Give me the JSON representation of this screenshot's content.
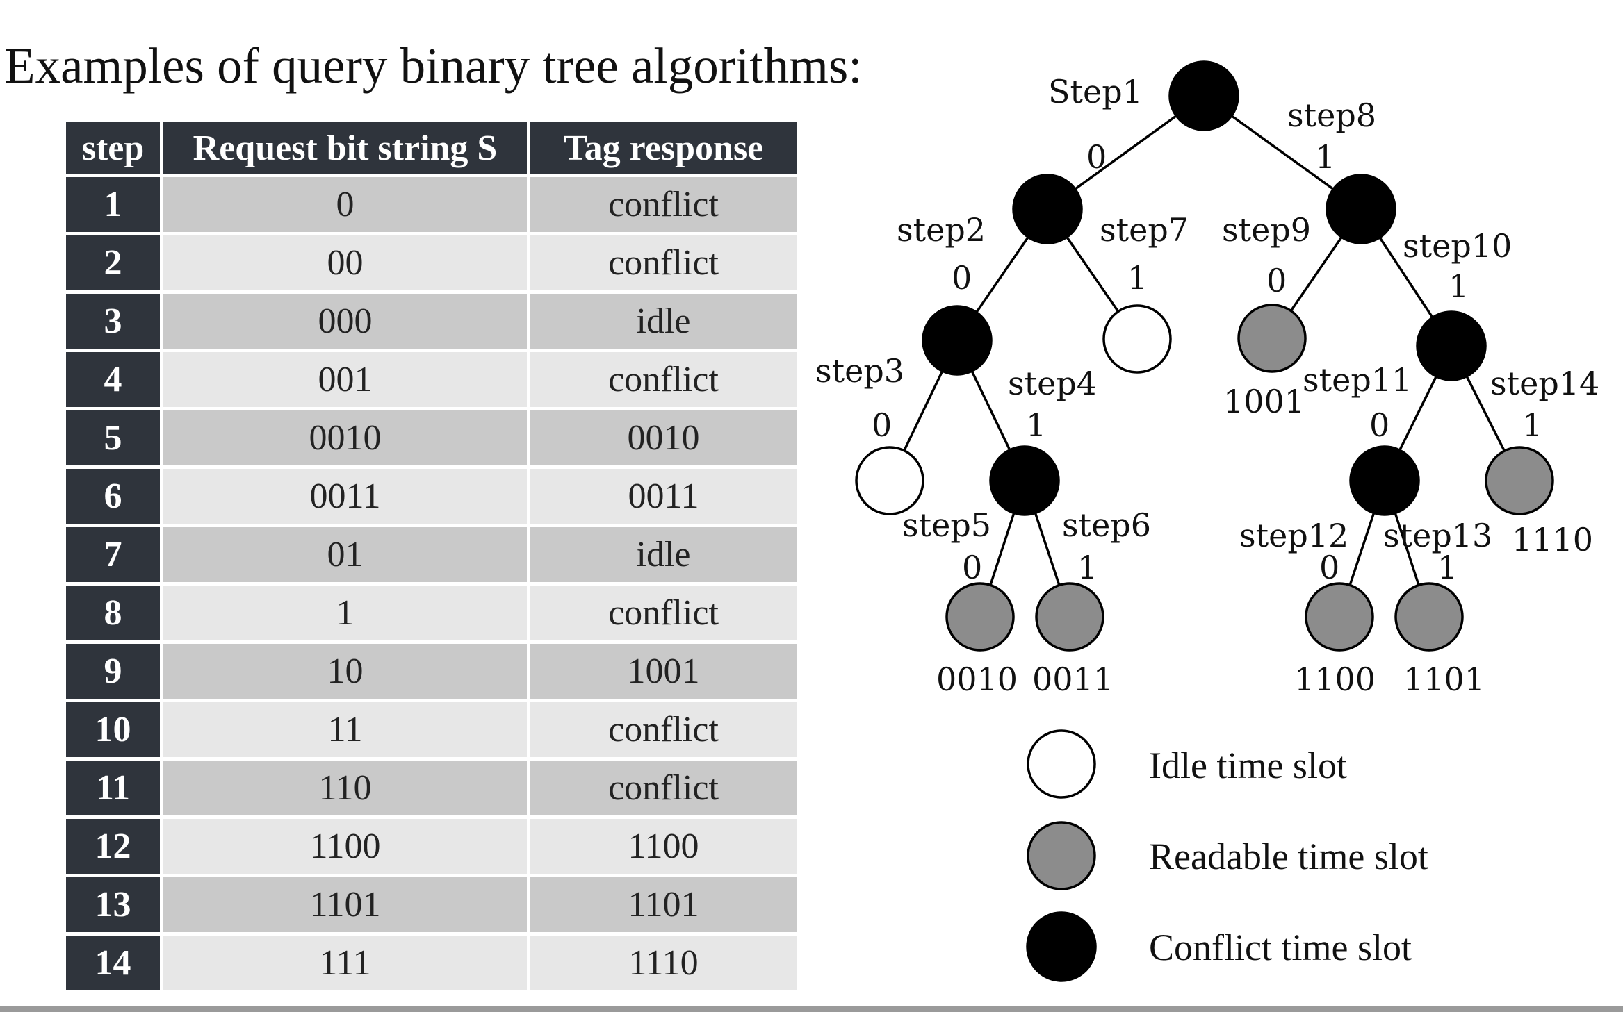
{
  "title": "Examples of query binary tree algorithms:",
  "table": {
    "headers": [
      "step",
      "Request bit string S",
      "Tag response"
    ],
    "rows": [
      {
        "step": "1",
        "request": "0",
        "response": "conflict"
      },
      {
        "step": "2",
        "request": "00",
        "response": "conflict"
      },
      {
        "step": "3",
        "request": "000",
        "response": "idle"
      },
      {
        "step": "4",
        "request": "001",
        "response": "conflict"
      },
      {
        "step": "5",
        "request": "0010",
        "response": "0010"
      },
      {
        "step": "6",
        "request": "0011",
        "response": "0011"
      },
      {
        "step": "7",
        "request": "01",
        "response": "idle"
      },
      {
        "step": "8",
        "request": "1",
        "response": "conflict"
      },
      {
        "step": "9",
        "request": "10",
        "response": "1001"
      },
      {
        "step": "10",
        "request": "11",
        "response": "conflict"
      },
      {
        "step": "11",
        "request": "110",
        "response": "conflict"
      },
      {
        "step": "12",
        "request": "1100",
        "response": "1100"
      },
      {
        "step": "13",
        "request": "1101",
        "response": "1101"
      },
      {
        "step": "14",
        "request": "111",
        "response": "1110"
      }
    ]
  },
  "tree": {
    "step_labels": [
      "Step1",
      "step2",
      "step3",
      "step4",
      "step5",
      "step6",
      "step7",
      "step8",
      "step9",
      "step10",
      "step11",
      "step12",
      "step13",
      "step14"
    ],
    "edge_labels": [
      "0",
      "1"
    ],
    "node_labels": [
      "0010",
      "0011",
      "1001",
      "1100",
      "1101",
      "1110"
    ]
  },
  "legend": [
    {
      "label": "Idle time slot",
      "color": "#ffffff"
    },
    {
      "label": "Readable time slot",
      "color": "#8c8c8c"
    },
    {
      "label": "Conflict time slot",
      "color": "#000000"
    }
  ],
  "colors": {
    "header_bg": "#2f343c",
    "row_dark": "#c9c9c9",
    "row_light": "#e7e7e7",
    "conflict": "#000000",
    "readable": "#8c8c8c",
    "idle": "#ffffff"
  }
}
